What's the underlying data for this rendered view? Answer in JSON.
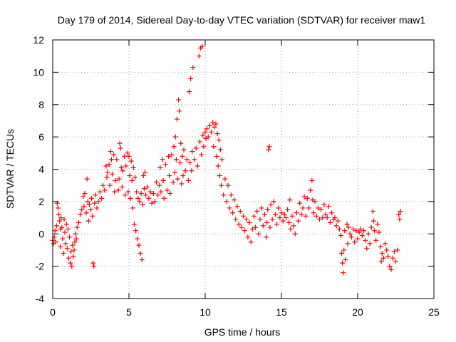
{
  "chart_data": {
    "type": "scatter",
    "title": "Day 179 of 2014, Sidereal Day-to-day VTEC variation (SDTVAR) for receiver maw1",
    "xlabel": "GPS time / hours",
    "ylabel": "SDTVAR / TECUs",
    "xlim": [
      0,
      25
    ],
    "ylim": [
      -4,
      12
    ],
    "xticks": [
      0,
      5,
      10,
      15,
      20,
      25
    ],
    "yticks": [
      -4,
      -2,
      0,
      2,
      4,
      6,
      8,
      10,
      12
    ],
    "grid": true,
    "marker": "+",
    "color": "#ff0000",
    "series": [
      {
        "name": "SDTVAR",
        "points": [
          [
            0.0,
            -0.4
          ],
          [
            0.05,
            -0.6
          ],
          [
            0.1,
            -0.2
          ],
          [
            0.15,
            0.2
          ],
          [
            0.2,
            -0.5
          ],
          [
            0.25,
            0.5
          ],
          [
            0.3,
            1.9
          ],
          [
            0.35,
            1.6
          ],
          [
            0.4,
            1.2
          ],
          [
            0.45,
            0.8
          ],
          [
            0.5,
            0.3
          ],
          [
            0.5,
            -0.8
          ],
          [
            0.55,
            1.0
          ],
          [
            0.6,
            0.4
          ],
          [
            0.65,
            -0.3
          ],
          [
            0.7,
            -1.2
          ],
          [
            0.75,
            0.9
          ],
          [
            0.8,
            0.1
          ],
          [
            0.85,
            -0.6
          ],
          [
            0.9,
            0.6
          ],
          [
            0.95,
            -0.9
          ],
          [
            1.0,
            0.3
          ],
          [
            1.05,
            -1.5
          ],
          [
            1.1,
            -0.2
          ],
          [
            1.15,
            -1.8
          ],
          [
            1.2,
            -1.1
          ],
          [
            1.25,
            -2.0
          ],
          [
            1.3,
            -0.7
          ],
          [
            1.35,
            -1.4
          ],
          [
            1.4,
            -1.0
          ],
          [
            1.45,
            -0.5
          ],
          [
            1.5,
            0.0
          ],
          [
            1.55,
            -0.3
          ],
          [
            1.6,
            0.4
          ],
          [
            1.7,
            0.7
          ],
          [
            1.8,
            1.2
          ],
          [
            1.9,
            1.5
          ],
          [
            2.0,
            2.3
          ],
          [
            2.05,
            1.7
          ],
          [
            2.1,
            2.5
          ],
          [
            2.2,
            1.3
          ],
          [
            2.25,
            3.4
          ],
          [
            2.3,
            2.0
          ],
          [
            2.35,
            0.8
          ],
          [
            2.4,
            1.8
          ],
          [
            2.5,
            1.5
          ],
          [
            2.55,
            2.2
          ],
          [
            2.6,
            1.1
          ],
          [
            2.65,
            -1.8
          ],
          [
            2.7,
            -2.0
          ],
          [
            2.75,
            1.9
          ],
          [
            2.8,
            2.4
          ],
          [
            2.9,
            1.6
          ],
          [
            3.0,
            2.0
          ],
          [
            3.1,
            2.6
          ],
          [
            3.2,
            2.2
          ],
          [
            3.3,
            3.0
          ],
          [
            3.4,
            2.7
          ],
          [
            3.5,
            4.2
          ],
          [
            3.55,
            3.5
          ],
          [
            3.6,
            3.8
          ],
          [
            3.7,
            4.3
          ],
          [
            3.75,
            3.0
          ],
          [
            3.8,
            5.1
          ],
          [
            3.85,
            4.6
          ],
          [
            3.9,
            3.7
          ],
          [
            4.0,
            4.9
          ],
          [
            4.05,
            2.6
          ],
          [
            4.1,
            3.3
          ],
          [
            4.2,
            4.6
          ],
          [
            4.3,
            2.7
          ],
          [
            4.35,
            3.4
          ],
          [
            4.4,
            5.6
          ],
          [
            4.45,
            5.3
          ],
          [
            4.5,
            4.1
          ],
          [
            4.55,
            2.9
          ],
          [
            4.6,
            3.9
          ],
          [
            4.7,
            4.8
          ],
          [
            4.75,
            2.4
          ],
          [
            4.8,
            4.2
          ],
          [
            4.9,
            5.0
          ],
          [
            4.95,
            2.6
          ],
          [
            5.0,
            4.8
          ],
          [
            5.05,
            3.6
          ],
          [
            5.1,
            2.2
          ],
          [
            5.15,
            4.5
          ],
          [
            5.2,
            3.3
          ],
          [
            5.25,
            1.6
          ],
          [
            5.3,
            4.1
          ],
          [
            5.35,
            0.6
          ],
          [
            5.4,
            3.5
          ],
          [
            5.45,
            0.2
          ],
          [
            5.5,
            2.6
          ],
          [
            5.55,
            -0.3
          ],
          [
            5.6,
            2.2
          ],
          [
            5.65,
            -0.7
          ],
          [
            5.7,
            2.0
          ],
          [
            5.75,
            -1.2
          ],
          [
            5.8,
            2.5
          ],
          [
            5.85,
            -1.6
          ],
          [
            5.9,
            1.8
          ],
          [
            5.95,
            3.6
          ],
          [
            6.0,
            2.8
          ],
          [
            6.05,
            3.8
          ],
          [
            6.1,
            2.4
          ],
          [
            6.2,
            2.9
          ],
          [
            6.3,
            2.2
          ],
          [
            6.4,
            2.6
          ],
          [
            6.5,
            1.9
          ],
          [
            6.6,
            2.5
          ],
          [
            6.7,
            2.0
          ],
          [
            6.8,
            3.2
          ],
          [
            6.9,
            2.4
          ],
          [
            7.0,
            3.0
          ],
          [
            7.05,
            4.1
          ],
          [
            7.1,
            2.6
          ],
          [
            7.2,
            4.6
          ],
          [
            7.25,
            3.3
          ],
          [
            7.3,
            2.2
          ],
          [
            7.4,
            4.3
          ],
          [
            7.5,
            2.7
          ],
          [
            7.6,
            4.8
          ],
          [
            7.65,
            3.6
          ],
          [
            7.7,
            2.5
          ],
          [
            7.8,
            4.9
          ],
          [
            7.9,
            3.2
          ],
          [
            7.95,
            5.4
          ],
          [
            8.0,
            3.8
          ],
          [
            8.05,
            6.0
          ],
          [
            8.1,
            4.6
          ],
          [
            8.15,
            7.1
          ],
          [
            8.2,
            3.4
          ],
          [
            8.25,
            8.3
          ],
          [
            8.3,
            7.6
          ],
          [
            8.35,
            4.4
          ],
          [
            8.4,
            5.6
          ],
          [
            8.45,
            3.1
          ],
          [
            8.5,
            4.8
          ],
          [
            8.55,
            3.6
          ],
          [
            8.6,
            5.2
          ],
          [
            8.7,
            3.9
          ],
          [
            8.8,
            4.6
          ],
          [
            8.9,
            3.3
          ],
          [
            8.95,
            8.8
          ],
          [
            9.0,
            4.4
          ],
          [
            9.05,
            9.6
          ],
          [
            9.1,
            3.9
          ],
          [
            9.15,
            5.1
          ],
          [
            9.2,
            10.3
          ],
          [
            9.3,
            4.6
          ],
          [
            9.4,
            5.3
          ],
          [
            9.5,
            4.2
          ],
          [
            9.6,
            11.0
          ],
          [
            9.65,
            5.7
          ],
          [
            9.7,
            11.5
          ],
          [
            9.75,
            4.9
          ],
          [
            9.8,
            11.6
          ],
          [
            9.85,
            6.1
          ],
          [
            9.9,
            5.4
          ],
          [
            10.0,
            6.3
          ],
          [
            10.05,
            5.9
          ],
          [
            10.1,
            6.5
          ],
          [
            10.2,
            6.0
          ],
          [
            10.3,
            6.7
          ],
          [
            10.4,
            6.3
          ],
          [
            10.5,
            6.9
          ],
          [
            10.55,
            5.4
          ],
          [
            10.6,
            6.6
          ],
          [
            10.7,
            6.8
          ],
          [
            10.75,
            4.8
          ],
          [
            10.8,
            6.2
          ],
          [
            10.85,
            4.2
          ],
          [
            10.9,
            5.8
          ],
          [
            10.95,
            3.6
          ],
          [
            11.0,
            5.2
          ],
          [
            11.05,
            3.0
          ],
          [
            11.1,
            4.6
          ],
          [
            11.2,
            2.4
          ],
          [
            11.3,
            3.4
          ],
          [
            11.4,
            2.0
          ],
          [
            11.5,
            3.0
          ],
          [
            11.6,
            1.6
          ],
          [
            11.7,
            2.4
          ],
          [
            11.8,
            1.3
          ],
          [
            11.9,
            2.1
          ],
          [
            12.0,
            0.9
          ],
          [
            12.1,
            1.7
          ],
          [
            12.2,
            0.6
          ],
          [
            12.3,
            1.4
          ],
          [
            12.4,
            0.4
          ],
          [
            12.5,
            1.1
          ],
          [
            12.6,
            0.2
          ],
          [
            12.7,
            0.9
          ],
          [
            12.8,
            -0.2
          ],
          [
            12.9,
            0.7
          ],
          [
            13.0,
            -0.5
          ],
          [
            13.1,
            0.3
          ],
          [
            13.2,
            1.1
          ],
          [
            13.3,
            0.4
          ],
          [
            13.4,
            1.4
          ],
          [
            13.5,
            0.0
          ],
          [
            13.6,
            0.9
          ],
          [
            13.7,
            1.6
          ],
          [
            13.8,
            0.5
          ],
          [
            13.9,
            1.2
          ],
          [
            14.0,
            -0.2
          ],
          [
            14.05,
            0.7
          ],
          [
            14.1,
            1.5
          ],
          [
            14.15,
            5.2
          ],
          [
            14.2,
            5.4
          ],
          [
            14.25,
            0.4
          ],
          [
            14.3,
            1.8
          ],
          [
            14.4,
            0.9
          ],
          [
            14.5,
            2.0
          ],
          [
            14.6,
            1.2
          ],
          [
            14.7,
            0.6
          ],
          [
            14.8,
            1.6
          ],
          [
            14.9,
            1.0
          ],
          [
            15.0,
            1.3
          ],
          [
            15.1,
            0.8
          ],
          [
            15.2,
            1.2
          ],
          [
            15.3,
            1.0
          ],
          [
            15.4,
            1.5
          ],
          [
            15.5,
            0.7
          ],
          [
            15.55,
            2.1
          ],
          [
            15.6,
            0.3
          ],
          [
            15.7,
            1.1
          ],
          [
            15.8,
            0.5
          ],
          [
            15.9,
            0.0
          ],
          [
            16.0,
            1.3
          ],
          [
            16.1,
            0.8
          ],
          [
            16.2,
            1.9
          ],
          [
            16.3,
            1.2
          ],
          [
            16.4,
            1.6
          ],
          [
            16.5,
            2.3
          ],
          [
            16.6,
            1.1
          ],
          [
            16.7,
            2.2
          ],
          [
            16.8,
            1.6
          ],
          [
            16.9,
            2.7
          ],
          [
            17.0,
            3.3
          ],
          [
            17.05,
            2.1
          ],
          [
            17.1,
            1.3
          ],
          [
            17.2,
            2.0
          ],
          [
            17.3,
            1.1
          ],
          [
            17.4,
            1.6
          ],
          [
            17.5,
            0.9
          ],
          [
            17.6,
            1.5
          ],
          [
            17.7,
            1.0
          ],
          [
            17.8,
            1.8
          ],
          [
            17.9,
            1.2
          ],
          [
            18.0,
            1.0
          ],
          [
            18.1,
            1.7
          ],
          [
            18.2,
            0.7
          ],
          [
            18.3,
            1.3
          ],
          [
            18.4,
            0.9
          ],
          [
            18.5,
            1.0
          ],
          [
            18.6,
            0.5
          ],
          [
            18.7,
            0.8
          ],
          [
            18.8,
            0.3
          ],
          [
            18.9,
            -0.1
          ],
          [
            18.95,
            -1.2
          ],
          [
            19.0,
            -1.8
          ],
          [
            19.05,
            -2.4
          ],
          [
            19.1,
            -1.0
          ],
          [
            19.15,
            0.2
          ],
          [
            19.2,
            -1.6
          ],
          [
            19.3,
            0.6
          ],
          [
            19.35,
            -0.6
          ],
          [
            19.4,
            0.4
          ],
          [
            19.5,
            0.0
          ],
          [
            19.6,
            -0.2
          ],
          [
            19.7,
            0.3
          ],
          [
            19.8,
            -0.5
          ],
          [
            19.9,
            0.2
          ],
          [
            20.0,
            -0.3
          ],
          [
            20.1,
            0.1
          ],
          [
            20.2,
            0.3
          ],
          [
            20.3,
            -0.1
          ],
          [
            20.4,
            0.2
          ],
          [
            20.5,
            -0.4
          ],
          [
            20.6,
            -0.9
          ],
          [
            20.7,
            0.0
          ],
          [
            20.8,
            -0.6
          ],
          [
            20.9,
            0.4
          ],
          [
            21.0,
            1.4
          ],
          [
            21.05,
            0.8
          ],
          [
            21.1,
            0.2
          ],
          [
            21.2,
            -0.4
          ],
          [
            21.3,
            0.6
          ],
          [
            21.4,
            0.1
          ],
          [
            21.5,
            -0.8
          ],
          [
            21.55,
            -1.7
          ],
          [
            21.6,
            -1.2
          ],
          [
            21.7,
            -1.5
          ],
          [
            21.8,
            -0.6
          ],
          [
            21.9,
            -1.0
          ],
          [
            22.0,
            -1.4
          ],
          [
            22.1,
            -2.0
          ],
          [
            22.2,
            -2.2
          ],
          [
            22.3,
            -1.5
          ],
          [
            22.4,
            -1.1
          ],
          [
            22.5,
            -1.7
          ],
          [
            22.6,
            -1.0
          ],
          [
            22.7,
            1.2
          ],
          [
            22.75,
            0.9
          ],
          [
            22.8,
            1.4
          ]
        ]
      }
    ]
  }
}
